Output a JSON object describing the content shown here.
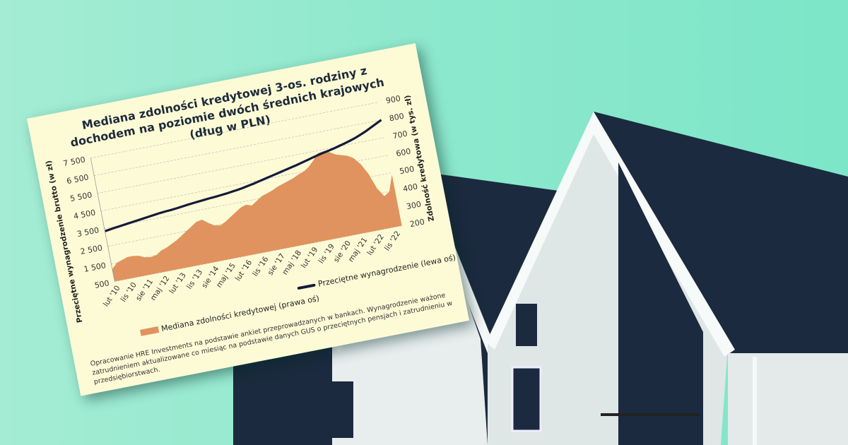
{
  "chart_data": {
    "type": "area+line",
    "title": "Mediana zdolności kredytowej 3-os. rodziny z dochodem na poziomie dwóch średnich krajowych (dług w PLN)",
    "ylabel_left": "Przeciętne wynagrodzenie brutto (w zł)",
    "ylabel_right": "Zdolność kredytowa (w tys. zł)",
    "ylim_left": [
      500,
      7500
    ],
    "ylim_right": [
      200,
      900
    ],
    "yticks_left": [
      "500",
      "1 500",
      "2 500",
      "3 500",
      "4 500",
      "5 500",
      "6 500",
      "7 500"
    ],
    "yticks_right": [
      "200",
      "300",
      "400",
      "500",
      "600",
      "700",
      "800",
      "900"
    ],
    "xtick_labels": [
      "lut '10",
      "lis '10",
      "sie '11",
      "maj '12",
      "lut '13",
      "lis '13",
      "sie '14",
      "maj '15",
      "lut '16",
      "lis '16",
      "sie '17",
      "maj '18",
      "lut '19",
      "lis '19",
      "sie '20",
      "maj '21",
      "lut '22",
      "lis '22"
    ],
    "grid": true,
    "legend_placement": "bottom",
    "x": [
      "2010-Q1",
      "2010-Q2",
      "2010-Q3",
      "2010-Q4",
      "2011-Q1",
      "2011-Q2",
      "2011-Q3",
      "2011-Q4",
      "2012-Q1",
      "2012-Q2",
      "2012-Q3",
      "2012-Q4",
      "2013-Q1",
      "2013-Q2",
      "2013-Q3",
      "2013-Q4",
      "2014-Q1",
      "2014-Q2",
      "2014-Q3",
      "2014-Q4",
      "2015-Q1",
      "2015-Q2",
      "2015-Q3",
      "2015-Q4",
      "2016-Q1",
      "2016-Q2",
      "2016-Q3",
      "2016-Q4",
      "2017-Q1",
      "2017-Q2",
      "2017-Q3",
      "2017-Q4",
      "2018-Q1",
      "2018-Q2",
      "2018-Q3",
      "2018-Q4",
      "2019-Q1",
      "2019-Q2",
      "2019-Q3",
      "2019-Q4",
      "2020-Q1",
      "2020-Q2",
      "2020-Q3",
      "2020-Q4",
      "2021-Q1",
      "2021-Q2",
      "2021-Q3",
      "2021-Q4",
      "2022-Q1",
      "2022-Q2",
      "2022-Q3",
      "2022-Q4"
    ],
    "series": [
      {
        "name": "Mediana zdolności kredytowej (prawa oś)",
        "axis": "right",
        "type": "area",
        "color": "#e0935e",
        "values": [
          270,
          300,
          310,
          320,
          320,
          315,
          300,
          295,
          300,
          320,
          330,
          345,
          360,
          380,
          400,
          420,
          440,
          445,
          420,
          400,
          395,
          410,
          430,
          450,
          470,
          480,
          470,
          490,
          510,
          520,
          530,
          545,
          555,
          565,
          575,
          590,
          600,
          620,
          650,
          685,
          690,
          680,
          660,
          650,
          640,
          620,
          580,
          520,
          430,
          380,
          400,
          490
        ]
      },
      {
        "name": "Przeciętne wynagrodzenie (lewa oś)",
        "axis": "left",
        "type": "line",
        "color": "#151a3d",
        "values": [
          3350,
          3400,
          3440,
          3480,
          3520,
          3560,
          3600,
          3640,
          3680,
          3720,
          3760,
          3790,
          3810,
          3840,
          3880,
          3920,
          3950,
          3980,
          4010,
          4040,
          4060,
          4090,
          4120,
          4160,
          4200,
          4250,
          4310,
          4370,
          4440,
          4510,
          4580,
          4650,
          4720,
          4790,
          4860,
          4930,
          5010,
          5090,
          5170,
          5250,
          5320,
          5380,
          5450,
          5530,
          5610,
          5700,
          5800,
          5920,
          6050,
          6200,
          6350,
          6500
        ]
      }
    ]
  },
  "footnote": "Opracowanie HRE Investments na podstawie ankiet przeprowadzanych w bankach. Wynagrodzenie ważone zatrudnieniem aktualizowane co miesiąc na podstawie danych GUS o przeciętnych pensjach i zatrudnieniu w przedsiębiorstwach.",
  "colors": {
    "background": "#8de8cc",
    "card": "#fdfbd6",
    "roof": "#1b2a3e"
  }
}
